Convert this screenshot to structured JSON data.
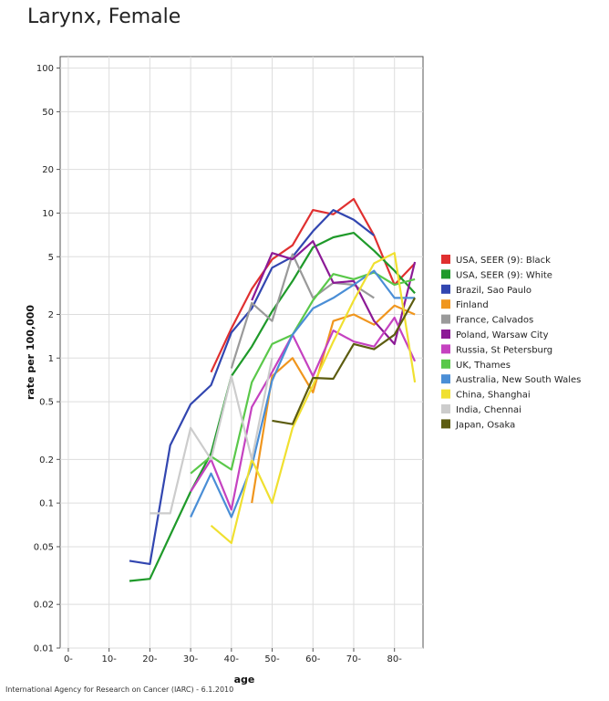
{
  "page": {
    "title": "Larynx, Female",
    "source": "International Agency for Research on Cancer (IARC) - 6.1.2010"
  },
  "chart_data": {
    "type": "line",
    "title": "Larynx, Female",
    "xlabel": "age",
    "ylabel": "rate per 100,000",
    "yscale": "log",
    "ylim": [
      0.01,
      120
    ],
    "xlim": [
      -2,
      87
    ],
    "grid": true,
    "legend_position": "right",
    "x_ticks": [
      0,
      10,
      20,
      30,
      40,
      50,
      60,
      70,
      80
    ],
    "x_tick_labels": [
      "0-",
      "10-",
      "20-",
      "30-",
      "40-",
      "50-",
      "60-",
      "70-",
      "80-"
    ],
    "y_ticks": [
      0.01,
      0.02,
      0.05,
      0.1,
      0.2,
      0.5,
      1,
      2,
      5,
      10,
      20,
      50,
      100
    ],
    "y_tick_labels": [
      "0.01",
      "0.02",
      "0.05",
      "0.1",
      "0.2",
      "0.5",
      "1",
      "2",
      "5",
      "10",
      "20",
      "50",
      "100"
    ],
    "series": [
      {
        "name": "USA, SEER (9): Black",
        "color": "#e03030",
        "x": [
          35,
          40,
          45,
          50,
          55,
          60,
          65,
          70,
          75,
          80,
          85
        ],
        "y": [
          0.8,
          1.6,
          3.0,
          4.8,
          6.0,
          10.5,
          9.8,
          12.5,
          7.0,
          3.2,
          4.5
        ]
      },
      {
        "name": "USA, SEER (9): White",
        "color": "#1f9a2a",
        "x": [
          15,
          20,
          25,
          30,
          35,
          40,
          45,
          50,
          55,
          60,
          65,
          70,
          75,
          80,
          85
        ],
        "y": [
          0.029,
          0.03,
          0.06,
          0.12,
          0.22,
          0.75,
          1.2,
          2.1,
          3.4,
          5.8,
          6.8,
          7.3,
          5.5,
          4.0,
          2.8
        ]
      },
      {
        "name": "Brazil, Sao Paulo",
        "color": "#3246b0",
        "x": [
          15,
          20,
          25,
          30,
          35,
          40,
          45,
          50,
          55,
          60,
          65,
          70,
          75
        ],
        "y": [
          0.04,
          0.038,
          0.25,
          0.48,
          0.65,
          1.5,
          2.2,
          4.2,
          5.0,
          7.5,
          10.5,
          9.0,
          7.0
        ]
      },
      {
        "name": "Finland",
        "color": "#f0961e",
        "x": [
          45,
          50,
          55,
          60,
          65,
          70,
          75,
          80,
          85
        ],
        "y": [
          0.1,
          0.75,
          1.0,
          0.58,
          1.8,
          2.0,
          1.7,
          2.3,
          2.0
        ]
      },
      {
        "name": "France, Calvados",
        "color": "#9a9a9a",
        "x": [
          40,
          45,
          50,
          55,
          60,
          65,
          70,
          75
        ],
        "y": [
          0.85,
          2.4,
          1.8,
          5.2,
          2.6,
          3.3,
          3.2,
          2.6
        ]
      },
      {
        "name": "Poland, Warsaw City",
        "color": "#8c1a96",
        "x": [
          45,
          50,
          55,
          60,
          65,
          70,
          75,
          80,
          85
        ],
        "y": [
          2.5,
          5.3,
          4.8,
          6.4,
          3.3,
          3.4,
          1.8,
          1.25,
          4.6
        ]
      },
      {
        "name": "Russia, St Petersburg",
        "color": "#c542c0",
        "x": [
          30,
          35,
          40,
          45,
          50,
          55,
          60,
          65,
          70,
          75,
          80,
          85
        ],
        "y": [
          0.12,
          0.2,
          0.09,
          0.46,
          0.8,
          1.45,
          0.75,
          1.55,
          1.3,
          1.2,
          1.9,
          0.95
        ]
      },
      {
        "name": "UK, Thames",
        "color": "#5ac84a",
        "x": [
          30,
          35,
          40,
          45,
          50,
          55,
          60,
          65,
          70,
          75,
          80,
          85
        ],
        "y": [
          0.16,
          0.21,
          0.17,
          0.68,
          1.25,
          1.45,
          2.5,
          3.8,
          3.5,
          3.9,
          3.2,
          3.5
        ]
      },
      {
        "name": "Australia, New South Wales",
        "color": "#4a8ed6",
        "x": [
          30,
          35,
          40,
          45,
          50,
          55,
          60,
          65,
          70,
          75,
          80,
          85
        ],
        "y": [
          0.08,
          0.16,
          0.08,
          0.18,
          0.7,
          1.45,
          2.2,
          2.6,
          3.2,
          4.0,
          2.6,
          2.6
        ]
      },
      {
        "name": "China, Shanghai",
        "color": "#f0e030",
        "x": [
          35,
          40,
          45,
          50,
          55,
          60,
          65,
          70,
          75,
          80,
          85
        ],
        "y": [
          0.07,
          0.053,
          0.2,
          0.1,
          0.33,
          0.65,
          1.3,
          2.5,
          4.5,
          5.3,
          0.68
        ]
      },
      {
        "name": "India, Chennai",
        "color": "#cccccc",
        "x": [
          20,
          25,
          30,
          35,
          40,
          45,
          50
        ],
        "y": [
          0.085,
          0.085,
          0.33,
          0.2,
          0.75,
          0.2,
          1.0
        ]
      },
      {
        "name": "Japan, Osaka",
        "color": "#5c5c10",
        "x": [
          50,
          55,
          60,
          65,
          70,
          75,
          80,
          85
        ],
        "y": [
          0.37,
          0.35,
          0.73,
          0.72,
          1.25,
          1.15,
          1.45,
          2.6
        ]
      }
    ]
  }
}
